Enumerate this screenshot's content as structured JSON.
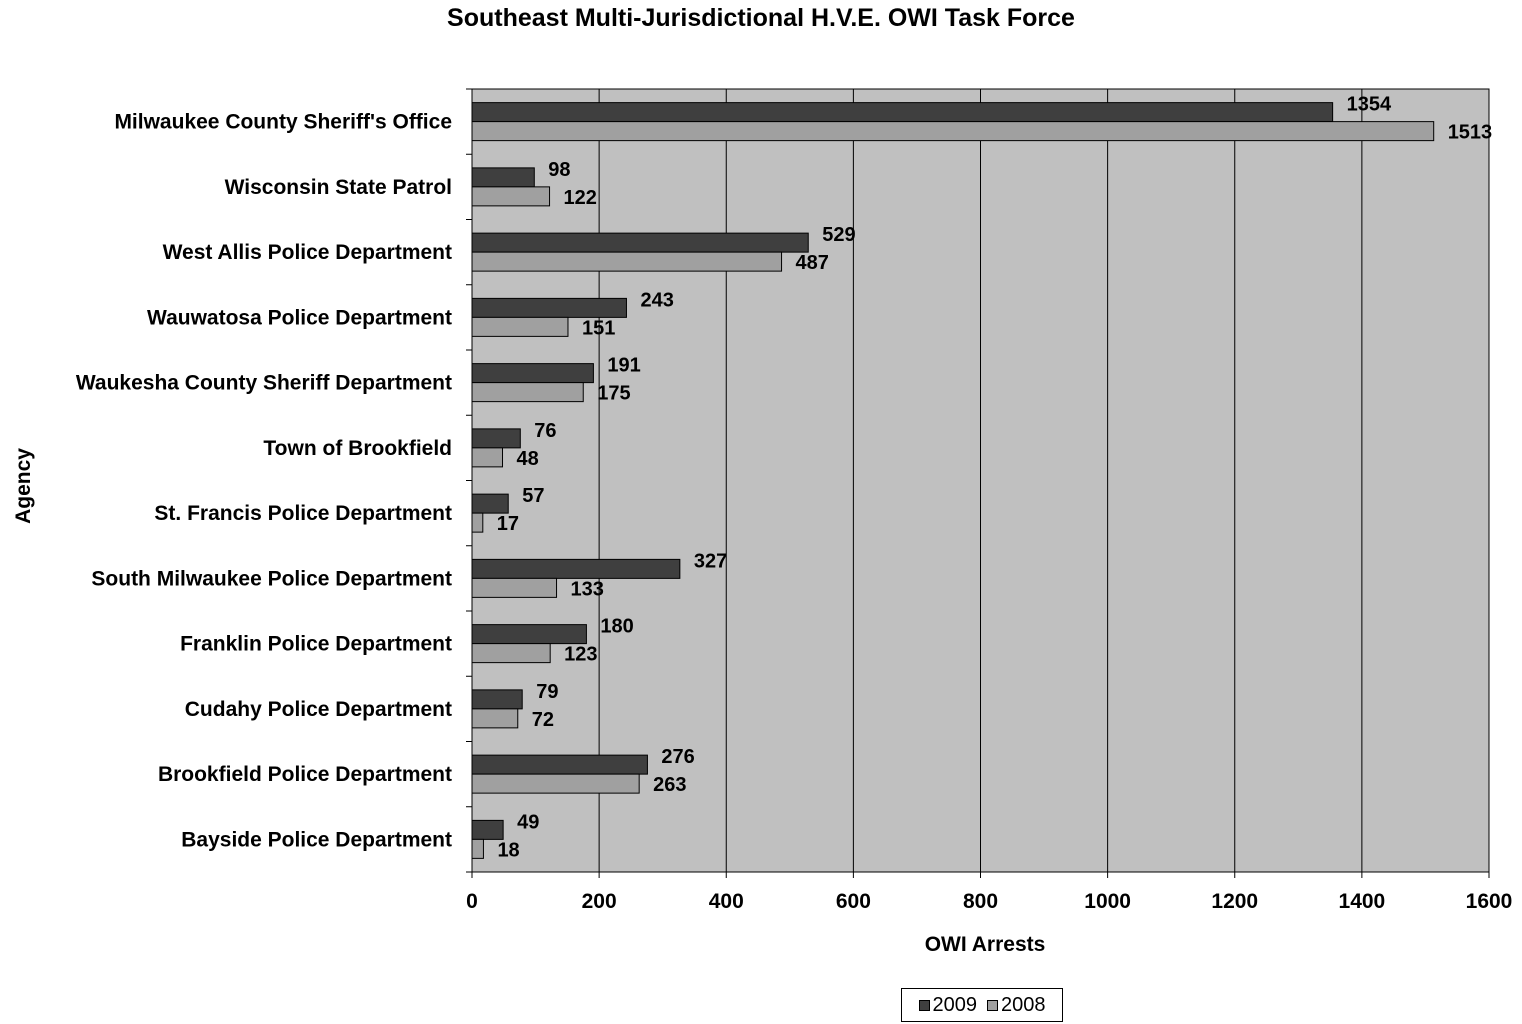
{
  "chart_data": {
    "type": "bar",
    "orientation": "horizontal",
    "title": "Southeast Multi-Jurisdictional  H.V.E. OWI Task Force",
    "xlabel": "OWI Arrests",
    "ylabel": "Agency",
    "xlim": [
      0,
      1600
    ],
    "xticks": [
      0,
      200,
      400,
      600,
      800,
      1000,
      1200,
      1400,
      1600
    ],
    "grid": true,
    "legend_position": "bottom",
    "categories": [
      "Milwaukee County Sheriff's Office",
      "Wisconsin State Patrol",
      "West Allis Police Department",
      "Wauwatosa Police Department",
      "Waukesha County Sheriff Department",
      "Town of Brookfield",
      "St. Francis Police Department",
      "South Milwaukee Police Department",
      "Franklin Police Department",
      "Cudahy Police Department",
      "Brookfield Police Department",
      "Bayside Police Department"
    ],
    "series": [
      {
        "name": "2009",
        "color": "#3f3f3f",
        "values": [
          1354,
          98,
          529,
          243,
          191,
          76,
          57,
          327,
          180,
          79,
          276,
          49
        ]
      },
      {
        "name": "2008",
        "color": "#a0a0a0",
        "values": [
          1513,
          122,
          487,
          151,
          175,
          48,
          17,
          133,
          123,
          72,
          263,
          18
        ]
      }
    ],
    "plot_background": "#c0c0c0"
  }
}
